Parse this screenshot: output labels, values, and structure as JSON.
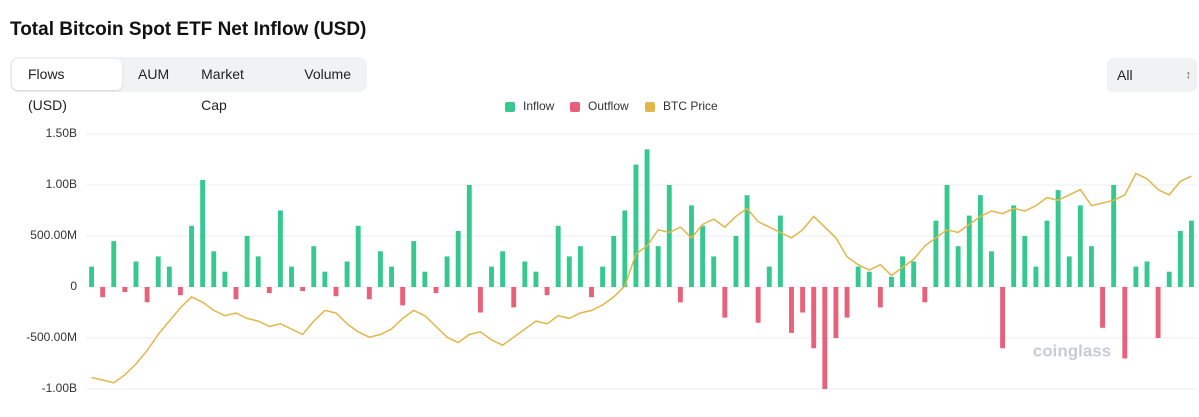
{
  "header": {
    "title": "Total Bitcoin Spot ETF Net Inflow (USD)"
  },
  "tabs": [
    "Flows (USD)",
    "AUM",
    "Market Cap",
    "Volume"
  ],
  "select": "All",
  "watermark": "coinglass",
  "chart_data": {
    "type": "bar",
    "ylim": [
      -1150000000,
      1650000000
    ],
    "yticks": [
      {
        "value": 1500000000,
        "label": "1.50B"
      },
      {
        "value": 1000000000,
        "label": "1.00B"
      },
      {
        "value": 500000000,
        "label": "500.00M"
      },
      0,
      {
        "value": -500000000,
        "label": "-500.00M"
      },
      {
        "value": -1000000000,
        "label": "-1.00B"
      }
    ],
    "y2lim": [
      32000,
      138400
    ],
    "grid": true,
    "legend": "top",
    "series": [
      {
        "name": "Inflow",
        "color": "#35c98f",
        "values": [
          200000000.0,
          null,
          450000000.0,
          null,
          250000000.0,
          null,
          300000000.0,
          200000000.0,
          null,
          600000000.0,
          1050000000.0,
          350000000.0,
          150000000.0,
          null,
          500000000.0,
          300000000.0,
          null,
          750000000.0,
          200000000.0,
          null,
          400000000.0,
          150000000.0,
          null,
          250000000.0,
          600000000.0,
          null,
          350000000.0,
          200000000.0,
          null,
          450000000.0,
          150000000.0,
          null,
          300000000.0,
          550000000.0,
          1000000000.0,
          null,
          200000000.0,
          350000000.0,
          null,
          250000000.0,
          150000000.0,
          null,
          600000000.0,
          300000000.0,
          400000000.0,
          null,
          200000000.0,
          500000000.0,
          750000000.0,
          1200000000.0,
          1350000000.0,
          400000000.0,
          1000000000.0,
          null,
          800000000.0,
          600000000.0,
          300000000.0,
          null,
          500000000.0,
          900000000.0,
          null,
          200000000.0,
          700000000.0,
          null,
          null,
          null,
          null,
          null,
          null,
          200000000.0,
          150000000.0,
          null,
          100000000.0,
          300000000.0,
          250000000.0,
          null,
          650000000.0,
          1000000000.0,
          400000000.0,
          700000000.0,
          900000000.0,
          350000000.0,
          null,
          800000000.0,
          500000000.0,
          200000000.0,
          650000000.0,
          950000000.0,
          300000000.0,
          800000000.0,
          400000000.0,
          null,
          1000000000.0,
          null,
          200000000.0,
          250000000.0,
          null,
          150000000.0,
          550000000.0,
          650000000.0
        ]
      },
      {
        "name": "Outflow",
        "color": "#e8617b",
        "values": [
          null,
          -100000000.0,
          null,
          -50000000.0,
          null,
          -150000000.0,
          null,
          null,
          -80000000.0,
          null,
          null,
          null,
          null,
          -120000000.0,
          null,
          null,
          -60000000.0,
          null,
          null,
          -40000000.0,
          null,
          null,
          -90000000.0,
          null,
          null,
          -120000000.0,
          null,
          null,
          -180000000.0,
          null,
          null,
          -60000000.0,
          null,
          null,
          null,
          -250000000.0,
          null,
          null,
          -200000000.0,
          null,
          null,
          -80000000.0,
          null,
          null,
          null,
          -100000000.0,
          null,
          null,
          null,
          null,
          null,
          null,
          null,
          -150000000.0,
          null,
          null,
          null,
          -300000000.0,
          null,
          null,
          -350000000.0,
          null,
          null,
          -450000000.0,
          -250000000.0,
          -600000000.0,
          -1000000000.0,
          -500000000.0,
          -300000000.0,
          null,
          null,
          -200000000.0,
          null,
          null,
          null,
          -150000000.0,
          null,
          null,
          null,
          null,
          null,
          null,
          -600000000.0,
          null,
          null,
          null,
          null,
          null,
          null,
          null,
          null,
          -400000000.0,
          null,
          -700000000.0,
          null,
          null,
          -500000000.0,
          null,
          null,
          null
        ]
      },
      {
        "name": "BTC Price",
        "color": "#e2b64a",
        "type": "line",
        "axis": "y2",
        "values": [
          42000,
          41000,
          40000,
          43000,
          47000,
          52000,
          58000,
          63000,
          68000,
          72000,
          70000,
          67000,
          65000,
          66000,
          64000,
          63000,
          61000,
          62000,
          60000,
          58000,
          63000,
          67000,
          66000,
          62000,
          59000,
          57000,
          58000,
          60000,
          64000,
          67000,
          65000,
          61000,
          57000,
          55000,
          58000,
          59000,
          56000,
          54000,
          57000,
          60000,
          63000,
          62000,
          65000,
          64000,
          66000,
          67000,
          69000,
          72000,
          76000,
          88000,
          91000,
          97000,
          96000,
          98000,
          94000,
          99000,
          101000,
          98000,
          102000,
          105000,
          100000,
          98000,
          96000,
          94000,
          97000,
          102000,
          98000,
          94000,
          87000,
          84000,
          82000,
          84000,
          80000,
          83000,
          86000,
          91000,
          94000,
          97000,
          96000,
          99000,
          102000,
          104000,
          103000,
          105000,
          104000,
          106000,
          109000,
          108000,
          110000,
          112000,
          106000,
          107000,
          108000,
          110000,
          118000,
          116000,
          112000,
          110000,
          115000,
          117000
        ]
      }
    ]
  }
}
